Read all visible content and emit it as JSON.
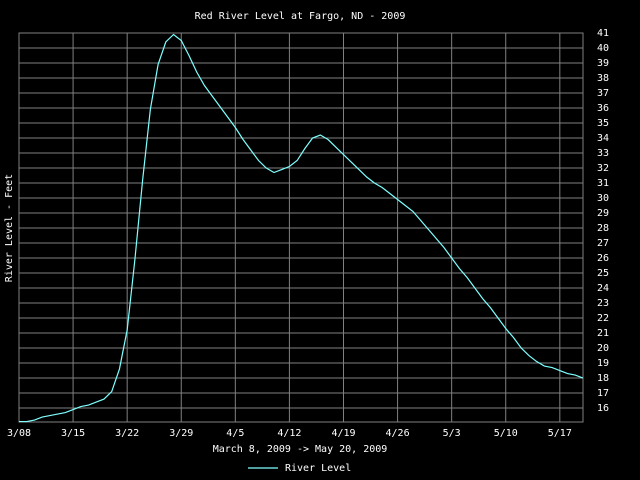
{
  "chart_data": {
    "type": "line",
    "title": "Red River Level at Fargo, ND - 2009",
    "xlabel": "March 8, 2009 -> May 20, 2009",
    "ylabel": "River Level - Feet",
    "x": [
      "2009-03-08",
      "2009-03-09",
      "2009-03-10",
      "2009-03-11",
      "2009-03-12",
      "2009-03-13",
      "2009-03-14",
      "2009-03-15",
      "2009-03-16",
      "2009-03-17",
      "2009-03-18",
      "2009-03-19",
      "2009-03-20",
      "2009-03-21",
      "2009-03-22",
      "2009-03-23",
      "2009-03-24",
      "2009-03-25",
      "2009-03-26",
      "2009-03-27",
      "2009-03-28",
      "2009-03-29",
      "2009-03-30",
      "2009-03-31",
      "2009-04-01",
      "2009-04-02",
      "2009-04-03",
      "2009-04-04",
      "2009-04-05",
      "2009-04-06",
      "2009-04-07",
      "2009-04-08",
      "2009-04-09",
      "2009-04-10",
      "2009-04-11",
      "2009-04-12",
      "2009-04-13",
      "2009-04-14",
      "2009-04-15",
      "2009-04-16",
      "2009-04-17",
      "2009-04-18",
      "2009-04-19",
      "2009-04-20",
      "2009-04-21",
      "2009-04-22",
      "2009-04-23",
      "2009-04-24",
      "2009-04-25",
      "2009-04-26",
      "2009-04-27",
      "2009-04-28",
      "2009-04-29",
      "2009-04-30",
      "2009-05-01",
      "2009-05-02",
      "2009-05-03",
      "2009-05-04",
      "2009-05-05",
      "2009-05-06",
      "2009-05-07",
      "2009-05-08",
      "2009-05-09",
      "2009-05-10",
      "2009-05-11",
      "2009-05-12",
      "2009-05-13",
      "2009-05-14",
      "2009-05-15",
      "2009-05-16",
      "2009-05-17",
      "2009-05-18",
      "2009-05-19",
      "2009-05-20"
    ],
    "series": [
      {
        "name": "River Level",
        "color": "#7fffff",
        "values": [
          15.1,
          15.1,
          15.2,
          15.4,
          15.5,
          15.6,
          15.7,
          15.9,
          16.1,
          16.2,
          16.4,
          16.6,
          17.1,
          18.6,
          21.2,
          25.9,
          31.2,
          35.9,
          38.9,
          40.4,
          40.9,
          40.5,
          39.5,
          38.4,
          37.5,
          36.8,
          36.1,
          35.4,
          34.7,
          33.9,
          33.2,
          32.5,
          32.0,
          31.7,
          31.9,
          32.1,
          32.5,
          33.3,
          34.0,
          34.2,
          33.9,
          33.4,
          32.9,
          32.4,
          31.9,
          31.4,
          31.0,
          30.7,
          30.3,
          29.9,
          29.5,
          29.1,
          28.5,
          27.9,
          27.3,
          26.7,
          26.0,
          25.3,
          24.7,
          24.0,
          23.3,
          22.7,
          22.0,
          21.3,
          20.7,
          20.0,
          19.5,
          19.1,
          18.8,
          18.7,
          18.5,
          18.3,
          18.2,
          18.0
        ]
      }
    ],
    "xlim": [
      "2009-03-08",
      "2009-05-20"
    ],
    "xticks": [
      {
        "value": "2009-03-08",
        "label": "3/08"
      },
      {
        "value": "2009-03-15",
        "label": "3/15"
      },
      {
        "value": "2009-03-22",
        "label": "3/22"
      },
      {
        "value": "2009-03-29",
        "label": "3/29"
      },
      {
        "value": "2009-04-05",
        "label": "4/5"
      },
      {
        "value": "2009-04-12",
        "label": "4/12"
      },
      {
        "value": "2009-04-19",
        "label": "4/19"
      },
      {
        "value": "2009-04-26",
        "label": "4/26"
      },
      {
        "value": "2009-05-03",
        "label": "5/3"
      },
      {
        "value": "2009-05-10",
        "label": "5/10"
      },
      {
        "value": "2009-05-17",
        "label": "5/17"
      }
    ],
    "ylim": [
      15.07,
      41
    ],
    "yticks": [
      16,
      17,
      18,
      19,
      20,
      21,
      22,
      23,
      24,
      25,
      26,
      27,
      28,
      29,
      30,
      31,
      32,
      33,
      34,
      35,
      36,
      37,
      38,
      39,
      40,
      41
    ],
    "grid": true
  }
}
